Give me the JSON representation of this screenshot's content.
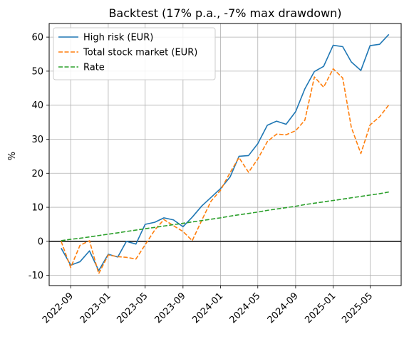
{
  "chart_data": {
    "type": "line",
    "title": "Backtest (17% p.a., -7% max drawdown)",
    "xlabel": "",
    "ylabel": "%",
    "grid": true,
    "legend_position": "top-left",
    "x_ticks": [
      "2022-09",
      "2023-01",
      "2023-05",
      "2023-09",
      "2024-01",
      "2024-05",
      "2024-09",
      "2025-01",
      "2025-05"
    ],
    "x_range": [
      "2022-06-23",
      "2025-08-10"
    ],
    "ylim": [
      -13,
      64
    ],
    "y_ticks": [
      -10,
      0,
      10,
      20,
      30,
      40,
      50,
      60
    ],
    "zero_line": true,
    "x": [
      "2022-08-01",
      "2022-09-01",
      "2022-10-01",
      "2022-11-01",
      "2022-12-01",
      "2023-01-01",
      "2023-02-01",
      "2023-03-01",
      "2023-04-01",
      "2023-05-01",
      "2023-06-01",
      "2023-07-01",
      "2023-08-01",
      "2023-09-01",
      "2023-10-01",
      "2023-11-01",
      "2023-12-01",
      "2024-01-01",
      "2024-02-01",
      "2024-03-01",
      "2024-04-01",
      "2024-05-01",
      "2024-06-01",
      "2024-07-01",
      "2024-08-01",
      "2024-09-01",
      "2024-10-01",
      "2024-11-01",
      "2024-12-01",
      "2025-01-01",
      "2025-02-01",
      "2025-03-01",
      "2025-04-01",
      "2025-05-01",
      "2025-06-01",
      "2025-07-01"
    ],
    "series": [
      {
        "name": "High risk (EUR)",
        "color": "#1f77b4",
        "style": "solid",
        "values": [
          -2.0,
          -7.0,
          -6.0,
          -2.8,
          -8.6,
          -3.8,
          -4.6,
          0.0,
          -0.8,
          5.0,
          5.6,
          6.9,
          6.3,
          4.3,
          7.1,
          10.4,
          12.9,
          15.5,
          18.9,
          25.0,
          25.2,
          28.7,
          34.1,
          35.3,
          34.4,
          38.1,
          44.8,
          49.9,
          51.4,
          57.6,
          57.2,
          52.7,
          50.2,
          57.5,
          57.9,
          60.8
        ]
      },
      {
        "name": "Total stock market (EUR)",
        "color": "#ff7f0e",
        "style": "dashed",
        "values": [
          0.0,
          -7.7,
          -1.2,
          0.2,
          -9.5,
          -4.0,
          -4.5,
          -4.7,
          -5.2,
          -1.0,
          3.3,
          6.4,
          4.6,
          2.9,
          0.2,
          6.2,
          11.8,
          15.0,
          20.2,
          24.6,
          20.3,
          24.2,
          29.3,
          31.5,
          31.3,
          32.5,
          35.6,
          48.3,
          45.3,
          50.7,
          48.0,
          33.5,
          25.8,
          34.2,
          36.6,
          40.1
        ]
      },
      {
        "name": "Rate",
        "color": "#2ca02c",
        "style": "dashed",
        "values": [
          0.2,
          0.6,
          0.9,
          1.3,
          1.7,
          2.1,
          2.5,
          2.9,
          3.3,
          3.7,
          4.1,
          4.5,
          4.9,
          5.3,
          5.7,
          6.1,
          6.5,
          6.9,
          7.4,
          7.8,
          8.2,
          8.6,
          9.1,
          9.5,
          9.9,
          10.3,
          10.8,
          11.2,
          11.6,
          12.0,
          12.4,
          12.8,
          13.2,
          13.6,
          14.0,
          14.5
        ]
      }
    ]
  }
}
